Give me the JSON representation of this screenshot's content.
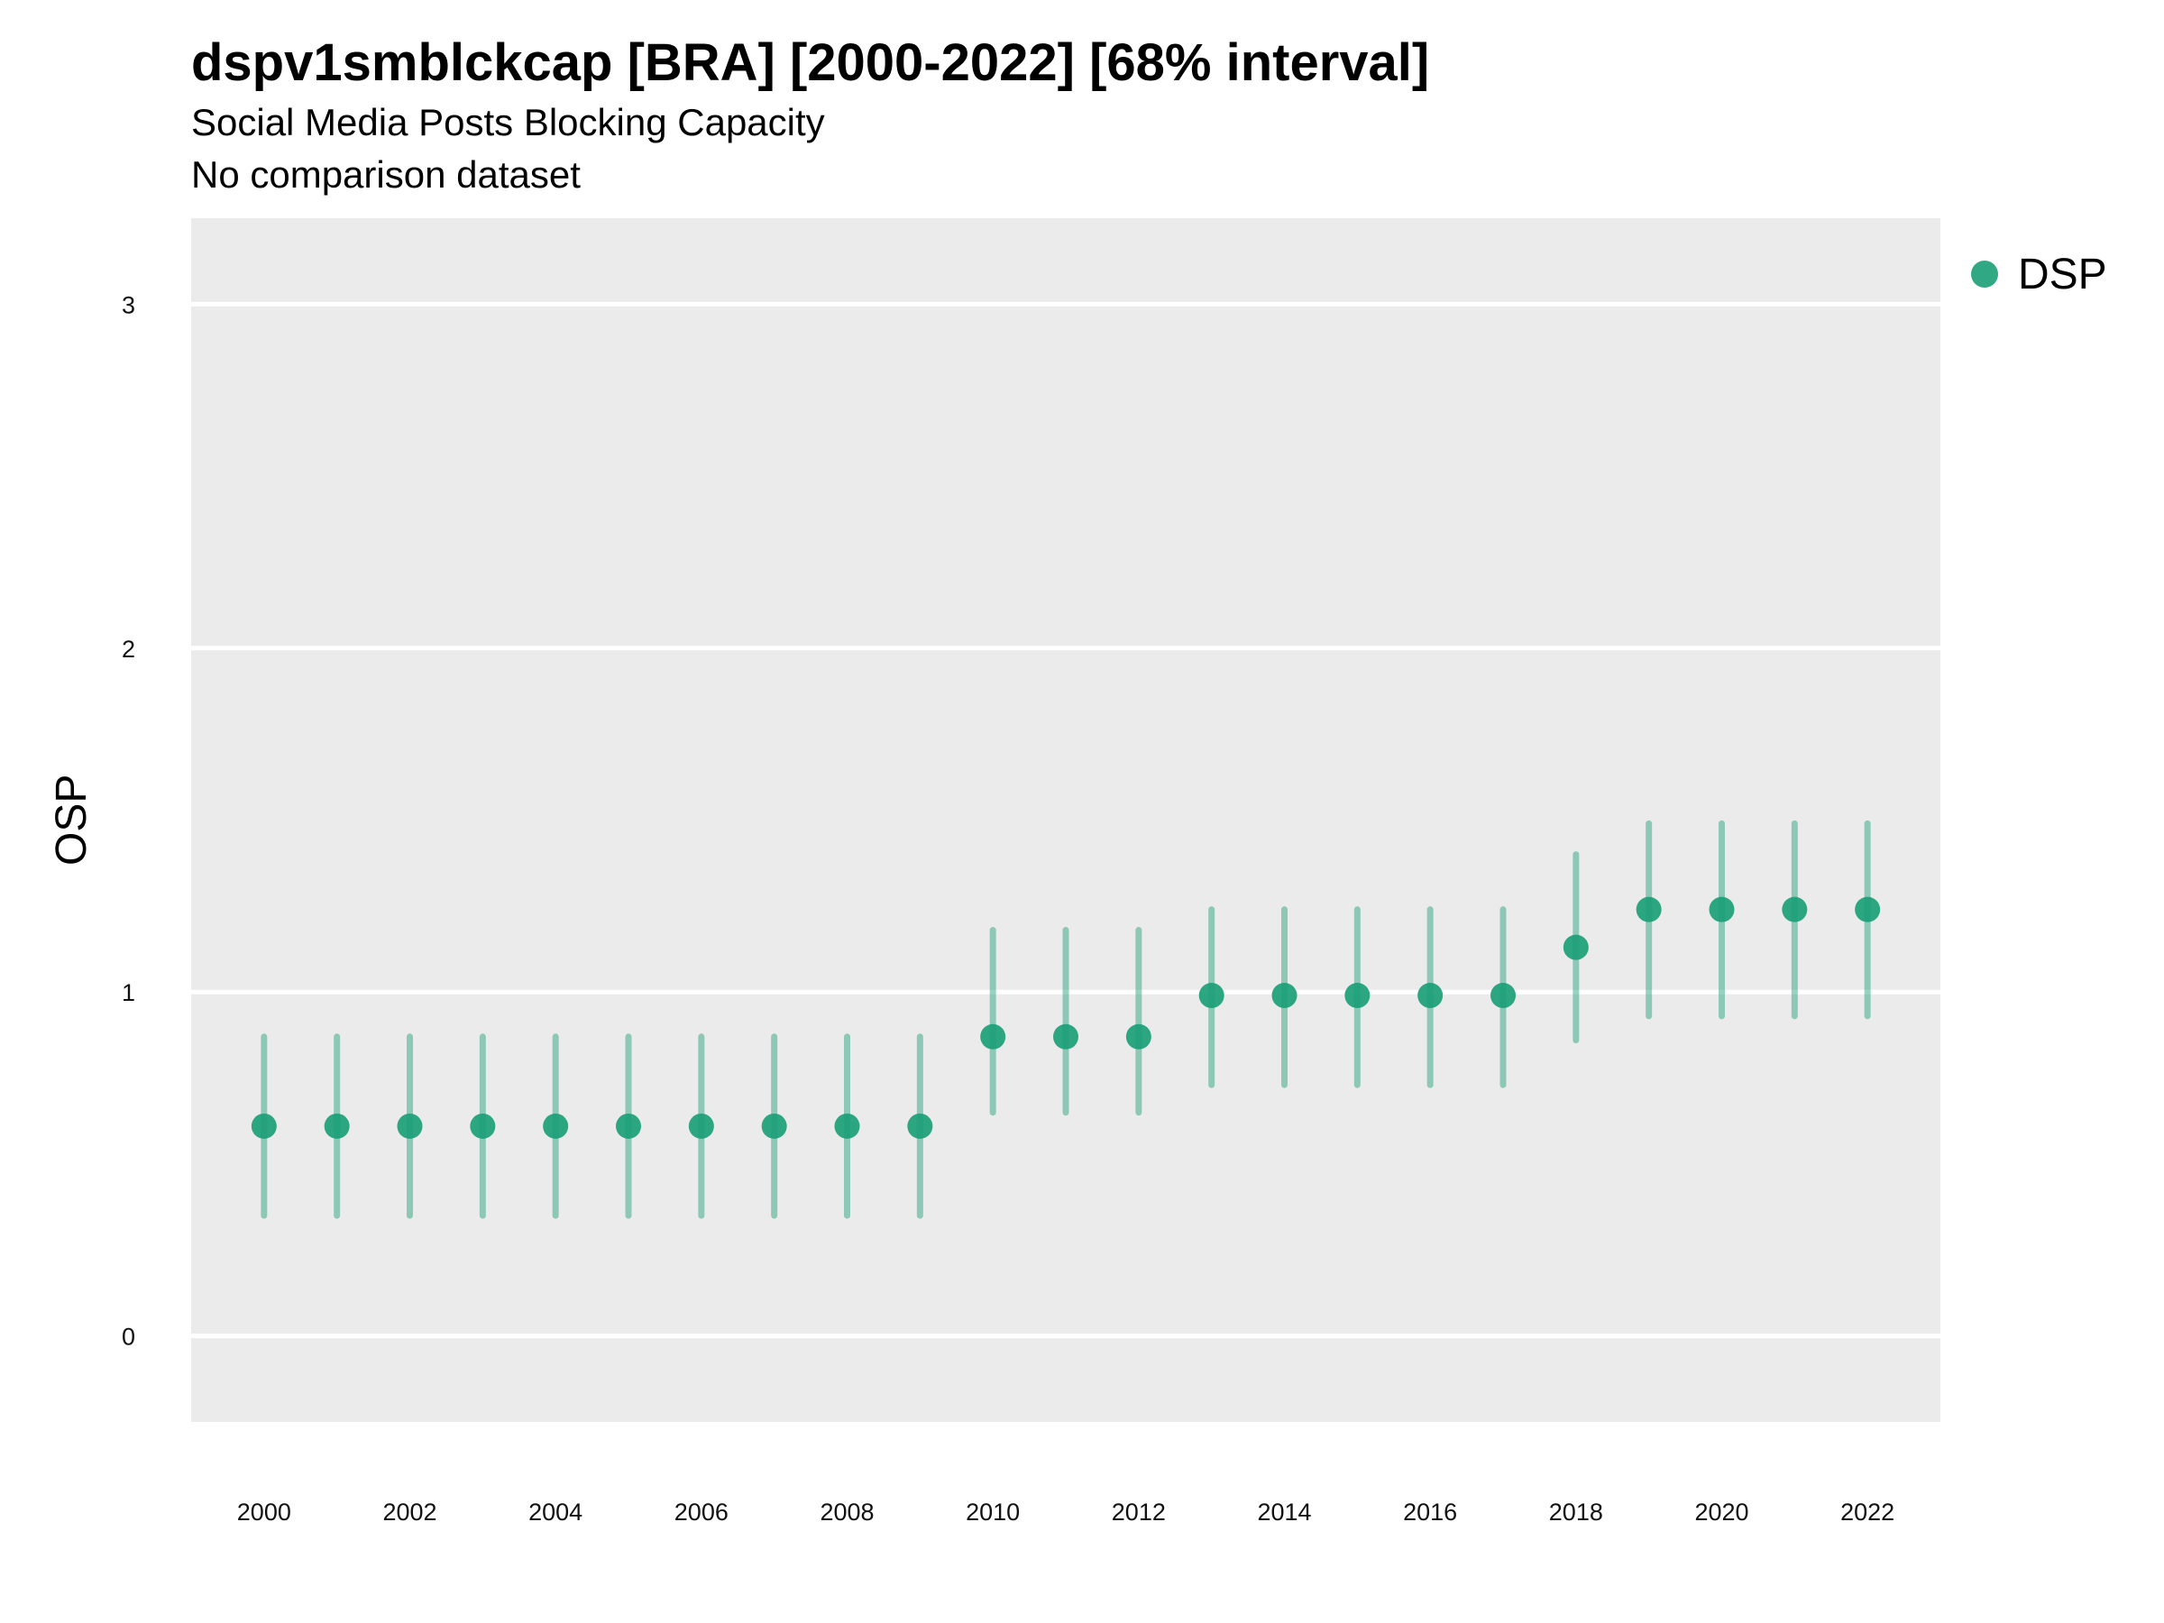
{
  "chart_data": {
    "type": "scatter",
    "title": "dspv1smblckcap [BRA] [2000-2022] [68% interval]",
    "subtitle": "Social Media Posts Blocking Capacity",
    "caption": "No comparison dataset",
    "xlabel": "",
    "ylabel": "OSP",
    "xlim": [
      1999,
      2023
    ],
    "ylim": [
      -0.25,
      3.25
    ],
    "x_ticks": [
      2000,
      2002,
      2004,
      2006,
      2008,
      2010,
      2012,
      2014,
      2016,
      2018,
      2020,
      2022
    ],
    "y_ticks": [
      0,
      1,
      2,
      3
    ],
    "grid": true,
    "legend_position": "top-right",
    "series": [
      {
        "name": "DSP",
        "color": "#1b9e77",
        "x": [
          2000,
          2001,
          2002,
          2003,
          2004,
          2005,
          2006,
          2007,
          2008,
          2009,
          2010,
          2011,
          2012,
          2013,
          2014,
          2015,
          2016,
          2017,
          2018,
          2019,
          2020,
          2021,
          2022
        ],
        "y": [
          0.61,
          0.61,
          0.61,
          0.61,
          0.61,
          0.61,
          0.61,
          0.61,
          0.61,
          0.61,
          0.87,
          0.87,
          0.87,
          0.99,
          0.99,
          0.99,
          0.99,
          0.99,
          1.13,
          1.24,
          1.24,
          1.24,
          1.24
        ],
        "lower": [
          0.35,
          0.35,
          0.35,
          0.35,
          0.35,
          0.35,
          0.35,
          0.35,
          0.35,
          0.35,
          0.65,
          0.65,
          0.65,
          0.73,
          0.73,
          0.73,
          0.73,
          0.73,
          0.86,
          0.93,
          0.93,
          0.93,
          0.93
        ],
        "upper": [
          0.87,
          0.87,
          0.87,
          0.87,
          0.87,
          0.87,
          0.87,
          0.87,
          0.87,
          0.87,
          1.18,
          1.18,
          1.18,
          1.24,
          1.24,
          1.24,
          1.24,
          1.24,
          1.4,
          1.49,
          1.49,
          1.49,
          1.49
        ]
      }
    ]
  }
}
